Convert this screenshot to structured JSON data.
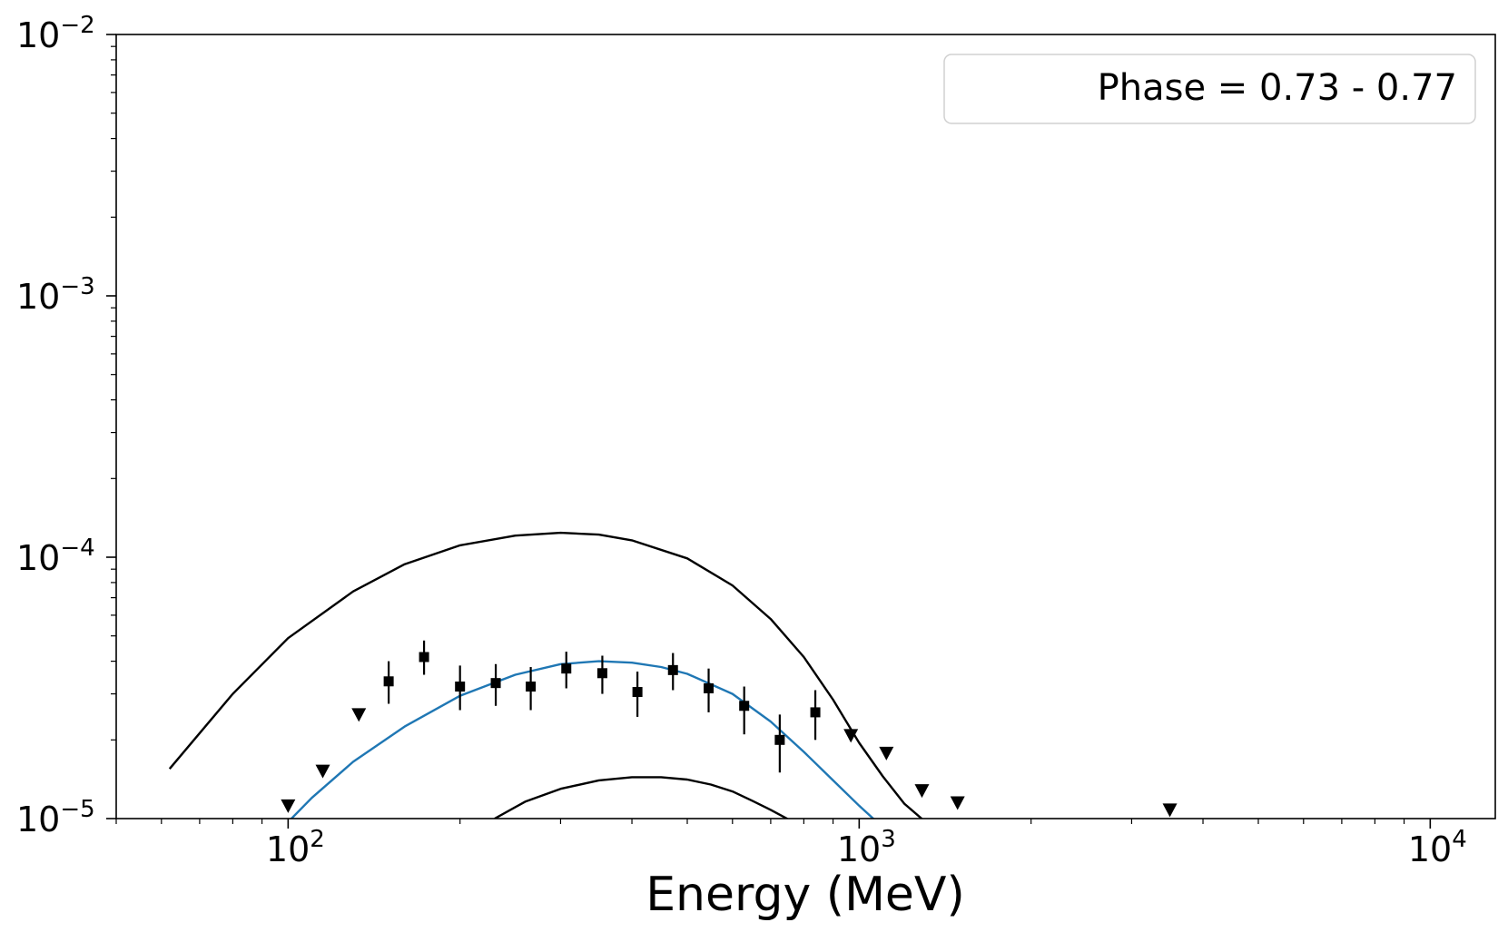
{
  "chart_data": {
    "type": "scatter",
    "title": "",
    "xlabel": "Energy (MeV)",
    "ylabel": "",
    "xscale": "log",
    "yscale": "log",
    "xlim": [
      50,
      13000
    ],
    "ylim": [
      1e-05,
      0.01
    ],
    "x_ticks": [
      {
        "value": 100,
        "base": "10",
        "exp": "2"
      },
      {
        "value": 1000,
        "base": "10",
        "exp": "3"
      },
      {
        "value": 10000,
        "base": "10",
        "exp": "4"
      }
    ],
    "y_ticks": [
      {
        "value": 1e-05,
        "base": "10",
        "exp": "−5"
      },
      {
        "value": 0.0001,
        "base": "10",
        "exp": "−4"
      },
      {
        "value": 0.001,
        "base": "10",
        "exp": "−3"
      },
      {
        "value": 0.01,
        "base": "10",
        "exp": "−2"
      }
    ],
    "legend": {
      "label": "Phase = 0.73 - 0.77",
      "placement": "top-right"
    },
    "series": [
      {
        "name": "data points",
        "kind": "errorbar",
        "marker": "square",
        "color": "#000000",
        "points": [
          {
            "x": 150,
            "y": 3.35e-05,
            "ylo": 2.75e-05,
            "yhi": 4e-05
          },
          {
            "x": 173,
            "y": 4.15e-05,
            "ylo": 3.55e-05,
            "yhi": 4.8e-05
          },
          {
            "x": 200,
            "y": 3.2e-05,
            "ylo": 2.6e-05,
            "yhi": 3.85e-05
          },
          {
            "x": 231,
            "y": 3.3e-05,
            "ylo": 2.7e-05,
            "yhi": 3.9e-05
          },
          {
            "x": 266,
            "y": 3.2e-05,
            "ylo": 2.6e-05,
            "yhi": 3.8e-05
          },
          {
            "x": 307,
            "y": 3.75e-05,
            "ylo": 3.15e-05,
            "yhi": 4.35e-05
          },
          {
            "x": 355,
            "y": 3.6e-05,
            "ylo": 3e-05,
            "yhi": 4.2e-05
          },
          {
            "x": 409,
            "y": 3.05e-05,
            "ylo": 2.45e-05,
            "yhi": 3.65e-05
          },
          {
            "x": 472,
            "y": 3.7e-05,
            "ylo": 3.1e-05,
            "yhi": 4.3e-05
          },
          {
            "x": 545,
            "y": 3.15e-05,
            "ylo": 2.55e-05,
            "yhi": 3.75e-05
          },
          {
            "x": 629,
            "y": 2.7e-05,
            "ylo": 2.1e-05,
            "yhi": 3.2e-05
          },
          {
            "x": 726,
            "y": 2e-05,
            "ylo": 1.5e-05,
            "yhi": 2.5e-05
          },
          {
            "x": 838,
            "y": 2.55e-05,
            "ylo": 2e-05,
            "yhi": 3.1e-05
          }
        ]
      },
      {
        "name": "upper limits",
        "kind": "scatter",
        "marker": "triangle-down",
        "color": "#000000",
        "points": [
          {
            "x": 100,
            "y": 1.12e-05
          },
          {
            "x": 115,
            "y": 1.52e-05
          },
          {
            "x": 133,
            "y": 2.5e-05
          },
          {
            "x": 967,
            "y": 2.08e-05
          },
          {
            "x": 1116,
            "y": 1.78e-05
          },
          {
            "x": 1288,
            "y": 1.28e-05
          },
          {
            "x": 1487,
            "y": 1.15e-05
          },
          {
            "x": 3500,
            "y": 1.08e-05
          }
        ]
      },
      {
        "name": "upper model curve",
        "kind": "line",
        "color": "#000000",
        "x": [
          62,
          80,
          100,
          130,
          160,
          200,
          250,
          300,
          350,
          400,
          500,
          600,
          700,
          800,
          900,
          1000,
          1100,
          1200,
          1300
        ],
        "y": [
          1.55e-05,
          3e-05,
          4.9e-05,
          7.4e-05,
          9.4e-05,
          0.000111,
          0.000121,
          0.000124,
          0.000122,
          0.000116,
          9.9e-05,
          7.8e-05,
          5.8e-05,
          4.15e-05,
          2.85e-05,
          1.95e-05,
          1.45e-05,
          1.14e-05,
          9.8e-06
        ]
      },
      {
        "name": "fit",
        "kind": "line",
        "color": "#1f77b4",
        "x": [
          100,
          110,
          130,
          160,
          200,
          250,
          300,
          350,
          400,
          450,
          500,
          600,
          700,
          800,
          900,
          1000,
          1080
        ],
        "y": [
          9.7e-06,
          1.2e-05,
          1.65e-05,
          2.25e-05,
          2.95e-05,
          3.55e-05,
          3.9e-05,
          4e-05,
          3.95e-05,
          3.8e-05,
          3.58e-05,
          3e-05,
          2.35e-05,
          1.8e-05,
          1.4e-05,
          1.12e-05,
          9.6e-06
        ]
      },
      {
        "name": "lower model curve",
        "kind": "line",
        "color": "#000000",
        "x": [
          230,
          260,
          300,
          350,
          400,
          450,
          500,
          550,
          600,
          650,
          700,
          760
        ],
        "y": [
          1e-05,
          1.16e-05,
          1.3e-05,
          1.4e-05,
          1.44e-05,
          1.44e-05,
          1.41e-05,
          1.35e-05,
          1.27e-05,
          1.17e-05,
          1.08e-05,
          9.8e-06
        ]
      }
    ]
  }
}
